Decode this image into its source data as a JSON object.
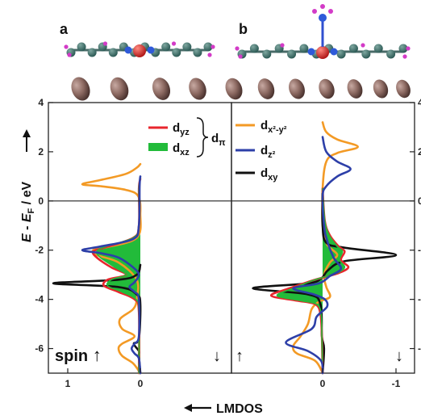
{
  "panel_labels": [
    "a",
    "b"
  ],
  "xlabel": "LMDOS",
  "ylabel_parts": [
    "E",
    " - ",
    "E",
    "F",
    " / eV"
  ],
  "spin_label": "spin",
  "dpi_label": "π",
  "colors": {
    "dyz": "#e8262d",
    "dxz": "#22bb3a",
    "dx2y2": "#f39a25",
    "dz2": "#2d3fa8",
    "dxy": "#111111",
    "fill": "#22bb3a"
  },
  "legend_a": [
    {
      "key": "dyz",
      "base": "d",
      "sub": "yz"
    },
    {
      "key": "dxz",
      "base": "d",
      "sub": "xz"
    }
  ],
  "legend_b": [
    {
      "key": "dx2y2",
      "base": "d",
      "sub": "x²-y²"
    },
    {
      "key": "dz2",
      "base": "d",
      "sub": "z²"
    },
    {
      "key": "dxy",
      "base": "d",
      "sub": "xy"
    }
  ],
  "chart_data": {
    "type": "line",
    "y_range": [
      -7,
      4
    ],
    "x_range_panel_a": [
      1.25,
      0
    ],
    "x_range_panel_b": [
      0,
      -1.15
    ],
    "yticks": [
      4,
      2,
      0,
      -2,
      -4,
      -6
    ],
    "ytick_labels": [
      "4",
      "2",
      "0",
      "-2",
      "-4",
      "-6"
    ],
    "xticks_panel_a": [
      1,
      0
    ],
    "xtick_labels_panel_a": [
      "1",
      "0"
    ],
    "xticks_panel_b": [
      0,
      -1
    ],
    "xtick_labels_panel_b": [
      "0",
      "-1"
    ],
    "spin_arrows": [
      "↓",
      "↑",
      "↓"
    ],
    "panels": [
      {
        "panel": "a",
        "series": [
          {
            "key": "dx2y2",
            "points": [
              [
                0,
                1.5
              ],
              [
                0.05,
                1.35
              ],
              [
                0.2,
                1.1
              ],
              [
                0.55,
                0.85
              ],
              [
                0.8,
                0.68
              ],
              [
                0.55,
                0.6
              ],
              [
                0.2,
                0.45
              ],
              [
                0.03,
                0.2
              ],
              [
                0,
                -0.5
              ],
              [
                0.05,
                -1.5
              ],
              [
                0.5,
                -1.9
              ],
              [
                0.65,
                -2.0
              ],
              [
                0.6,
                -2.2
              ],
              [
                0.3,
                -2.5
              ],
              [
                0.05,
                -3.2
              ],
              [
                0.05,
                -4.0
              ],
              [
                0.1,
                -4.4
              ],
              [
                0.28,
                -4.8
              ],
              [
                0.25,
                -5.2
              ],
              [
                0.08,
                -5.5
              ],
              [
                0.25,
                -5.8
              ],
              [
                0.3,
                -6.0
              ],
              [
                0.25,
                -6.3
              ],
              [
                0.1,
                -6.6
              ],
              [
                0,
                -7.0
              ]
            ]
          },
          {
            "key": "dz2",
            "points": [
              [
                0,
                1.0
              ],
              [
                0.01,
                0.6
              ],
              [
                0.02,
                -1.0
              ],
              [
                0.1,
                -1.55
              ],
              [
                0.55,
                -1.85
              ],
              [
                0.8,
                -2.0
              ],
              [
                0.55,
                -2.12
              ],
              [
                0.3,
                -2.3
              ],
              [
                0.1,
                -2.7
              ],
              [
                0.02,
                -3.0
              ],
              [
                0.08,
                -3.3
              ],
              [
                0.15,
                -3.5
              ],
              [
                0.08,
                -3.7
              ],
              [
                0.02,
                -4.0
              ],
              [
                0.02,
                -5.5
              ],
              [
                0.08,
                -5.8
              ],
              [
                0.12,
                -6.0
              ],
              [
                0.08,
                -6.2
              ],
              [
                0.02,
                -6.4
              ],
              [
                0,
                -7.0
              ]
            ]
          },
          {
            "key": "dxy",
            "points": [
              [
                0,
                -2.6
              ],
              [
                0.05,
                -3.0
              ],
              [
                0.3,
                -3.2
              ],
              [
                1.2,
                -3.35
              ],
              [
                0.3,
                -3.5
              ],
              [
                0.05,
                -3.8
              ],
              [
                0,
                -4.2
              ],
              [
                0.02,
                -5.6
              ],
              [
                0.09,
                -5.8
              ],
              [
                0.02,
                -6.1
              ],
              [
                0.02,
                -6.3
              ],
              [
                0,
                -7.0
              ]
            ]
          },
          {
            "key": "dyz",
            "points": [
              [
                0,
                0.9
              ],
              [
                0.02,
                0.5
              ],
              [
                0.02,
                -1.0
              ],
              [
                0.1,
                -1.5
              ],
              [
                0.5,
                -1.9
              ],
              [
                0.65,
                -2.05
              ],
              [
                0.6,
                -2.3
              ],
              [
                0.4,
                -2.7
              ],
              [
                0.2,
                -3.0
              ],
              [
                0.45,
                -3.2
              ],
              [
                0.5,
                -3.45
              ],
              [
                0.3,
                -3.7
              ],
              [
                0.08,
                -4.0
              ],
              [
                0.02,
                -4.5
              ],
              [
                0.02,
                -7.0
              ]
            ]
          },
          {
            "key": "dxz",
            "points": [
              [
                0,
                0.9
              ],
              [
                0.02,
                0.5
              ],
              [
                0.02,
                -1.0
              ],
              [
                0.1,
                -1.5
              ],
              [
                0.48,
                -1.85
              ],
              [
                0.6,
                -2.05
              ],
              [
                0.55,
                -2.3
              ],
              [
                0.35,
                -2.7
              ],
              [
                0.2,
                -3.0
              ],
              [
                0.4,
                -3.2
              ],
              [
                0.45,
                -3.45
              ],
              [
                0.25,
                -3.7
              ],
              [
                0.06,
                -4.0
              ],
              [
                0.02,
                -4.5
              ],
              [
                0.02,
                -7.0
              ]
            ]
          }
        ]
      },
      {
        "panel": "b",
        "series": [
          {
            "key": "dx2y2",
            "points": [
              [
                0,
                3.2
              ],
              [
                -0.05,
                2.8
              ],
              [
                -0.2,
                2.5
              ],
              [
                -0.48,
                2.2
              ],
              [
                -0.2,
                1.95
              ],
              [
                -0.05,
                1.6
              ],
              [
                0,
                0.5
              ],
              [
                0,
                -1.0
              ],
              [
                -0.05,
                -1.7
              ],
              [
                -0.1,
                -1.9
              ],
              [
                -0.2,
                -2.2
              ],
              [
                -0.1,
                -2.5
              ],
              [
                -0.02,
                -3.0
              ],
              [
                -0.05,
                -3.5
              ],
              [
                -0.1,
                -3.9
              ],
              [
                0.05,
                -4.1
              ],
              [
                0.15,
                -4.4
              ],
              [
                0.2,
                -5.0
              ],
              [
                0.3,
                -5.5
              ],
              [
                0.4,
                -5.9
              ],
              [
                0.35,
                -6.2
              ],
              [
                0.1,
                -6.5
              ],
              [
                0,
                -7.0
              ]
            ]
          },
          {
            "key": "dz2",
            "points": [
              [
                0,
                2.6
              ],
              [
                -0.05,
                2.0
              ],
              [
                -0.2,
                1.6
              ],
              [
                -0.38,
                1.3
              ],
              [
                -0.2,
                1.0
              ],
              [
                -0.05,
                0.6
              ],
              [
                0,
                0.2
              ],
              [
                -0.02,
                -1.0
              ],
              [
                -0.06,
                -1.6
              ],
              [
                -0.15,
                -2.3
              ],
              [
                -0.25,
                -2.75
              ],
              [
                -0.1,
                -3.05
              ],
              [
                0.05,
                -3.35
              ],
              [
                0.4,
                -3.55
              ],
              [
                0.12,
                -3.8
              ],
              [
                -0.03,
                -4.0
              ],
              [
                -0.06,
                -4.3
              ],
              [
                0.08,
                -4.7
              ],
              [
                0.15,
                -5.2
              ],
              [
                0.5,
                -5.75
              ],
              [
                0.2,
                -6.1
              ],
              [
                0.02,
                -6.5
              ],
              [
                0,
                -7.0
              ]
            ]
          },
          {
            "key": "dxy",
            "points": [
              [
                0,
                0.3
              ],
              [
                0,
                -1.0
              ],
              [
                -0.05,
                -1.7
              ],
              [
                -0.3,
                -1.9
              ],
              [
                -1.0,
                -2.2
              ],
              [
                -0.3,
                -2.45
              ],
              [
                -0.08,
                -2.8
              ],
              [
                0.02,
                -3.15
              ],
              [
                0.2,
                -3.35
              ],
              [
                0.95,
                -3.55
              ],
              [
                0.2,
                -3.8
              ],
              [
                0.03,
                -4.2
              ],
              [
                0.01,
                -5.5
              ],
              [
                -0.02,
                -6.0
              ],
              [
                0,
                -7.0
              ]
            ]
          },
          {
            "key": "dyz",
            "points": [
              [
                0,
                0.5
              ],
              [
                -0.03,
                -0.8
              ],
              [
                -0.1,
                -1.4
              ],
              [
                -0.22,
                -1.85
              ],
              [
                -0.3,
                -2.05
              ],
              [
                -0.25,
                -2.4
              ],
              [
                -0.35,
                -2.7
              ],
              [
                -0.2,
                -2.95
              ],
              [
                0.1,
                -3.2
              ],
              [
                0.45,
                -3.55
              ],
              [
                0.7,
                -3.85
              ],
              [
                0.35,
                -4.05
              ],
              [
                0.1,
                -4.2
              ],
              [
                0.03,
                -4.6
              ],
              [
                0.01,
                -5.5
              ],
              [
                0,
                -7.0
              ]
            ]
          },
          {
            "key": "dxz",
            "points": [
              [
                0,
                0.5
              ],
              [
                -0.03,
                -0.8
              ],
              [
                -0.09,
                -1.4
              ],
              [
                -0.2,
                -1.85
              ],
              [
                -0.27,
                -2.05
              ],
              [
                -0.23,
                -2.4
              ],
              [
                -0.3,
                -2.7
              ],
              [
                -0.18,
                -2.95
              ],
              [
                0.1,
                -3.2
              ],
              [
                0.4,
                -3.55
              ],
              [
                0.62,
                -3.85
              ],
              [
                0.3,
                -4.05
              ],
              [
                0.08,
                -4.2
              ],
              [
                0.02,
                -4.6
              ],
              [
                0.01,
                -5.5
              ],
              [
                0,
                -7.0
              ]
            ]
          }
        ]
      }
    ]
  }
}
